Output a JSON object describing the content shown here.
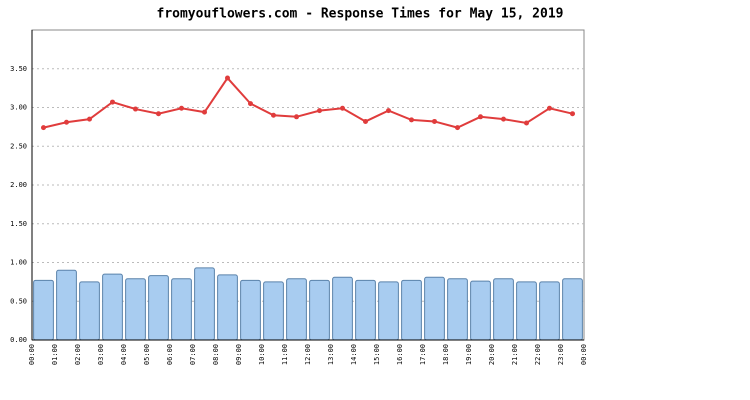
{
  "chart_data": {
    "type": "combo",
    "title": "fromyouflowers.com - Response Times for May 15, 2019",
    "x_labels": [
      "00:00",
      "01:00",
      "02:00",
      "03:00",
      "04:00",
      "05:00",
      "06:00",
      "07:00",
      "08:00",
      "09:00",
      "10:00",
      "11:00",
      "12:00",
      "13:00",
      "14:00",
      "15:00",
      "16:00",
      "17:00",
      "18:00",
      "19:00",
      "20:00",
      "21:00",
      "22:00",
      "23:00",
      "00:00"
    ],
    "ylim": [
      0,
      4
    ],
    "yticks": [
      {
        "value": 0,
        "label": "0.00"
      },
      {
        "value": 0.5,
        "label": "0.50"
      },
      {
        "value": 1,
        "label": "1.00"
      },
      {
        "value": 1.5,
        "label": "1.50"
      },
      {
        "value": 2,
        "label": "2.00"
      },
      {
        "value": 2.5,
        "label": "2.50"
      },
      {
        "value": 3,
        "label": "3.00"
      },
      {
        "value": 3.5,
        "label": "3.50"
      }
    ],
    "grid": true,
    "series": [
      {
        "type": "bar",
        "color": "#a8ccf0",
        "values": [
          0.77,
          0.9,
          0.75,
          0.85,
          0.79,
          0.83,
          0.79,
          0.93,
          0.84,
          0.77,
          0.75,
          0.79,
          0.77,
          0.81,
          0.77,
          0.75,
          0.77,
          0.81,
          0.79,
          0.76,
          0.79,
          0.75,
          0.75,
          0.79
        ]
      },
      {
        "type": "line",
        "color": "#e03c3c",
        "values": [
          2.74,
          2.81,
          2.85,
          3.07,
          2.98,
          2.92,
          2.99,
          2.94,
          3.38,
          3.05,
          2.9,
          2.88,
          2.96,
          2.99,
          2.82,
          2.96,
          2.84,
          2.82,
          2.74,
          2.88,
          2.85,
          2.8,
          2.99,
          2.92
        ]
      }
    ]
  }
}
